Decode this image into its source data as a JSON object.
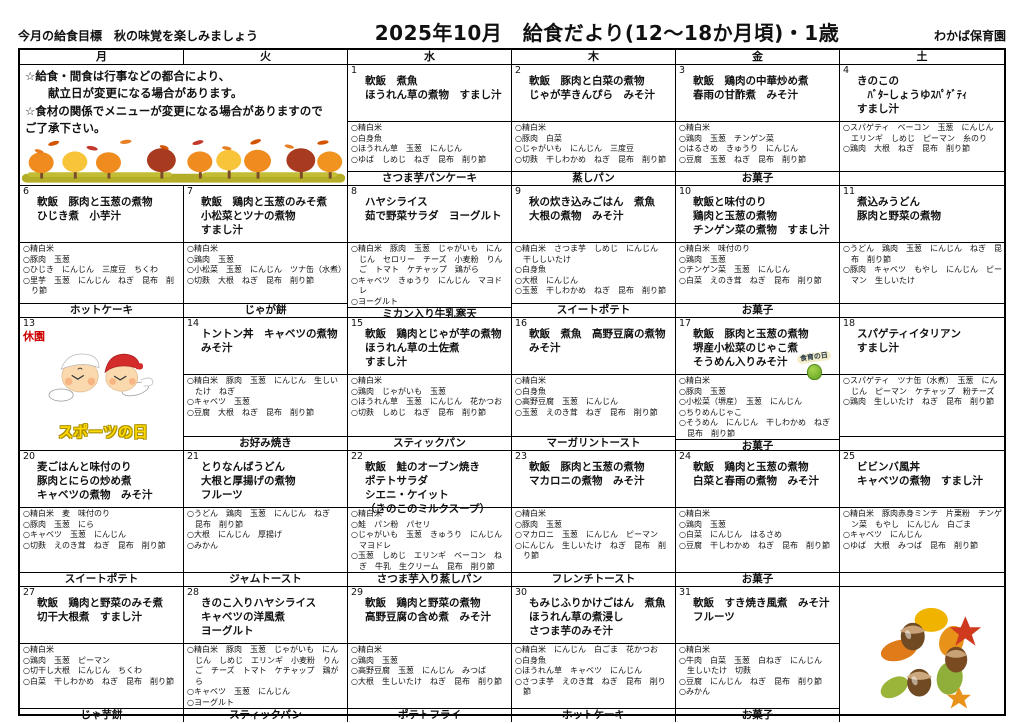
{
  "header": {
    "goal": "今月の給食目標　秋の味覚を楽しみましょう",
    "title": "2025年10月　給食だより(12～18か月頃)・1歳",
    "school": "わかば保育園"
  },
  "weekdays": [
    "月",
    "火",
    "水",
    "木",
    "金",
    "土"
  ],
  "notice_lines": [
    "☆給食・間食は行事などの都合により、",
    "　　献立日が変更になる場合があります。",
    "☆食材の関係でメニューが変更になる場合がありますので",
    "ご了承下さい。"
  ],
  "closed_label": "休園",
  "sports_day_label": "スポーツの日",
  "shokuiku_label": "食育の日",
  "colors": {
    "closed_red": "#cc0000",
    "sports_yellow": "#ffd800"
  },
  "weeks": [
    [
      {
        "type": "notice",
        "span": 2
      },
      {
        "type": "day",
        "day": "1",
        "menu": [
          "軟飯　煮魚",
          "ほうれん草の煮物　すまし汁"
        ],
        "ingredients": [
          "○精白米",
          "○白身魚",
          "○ほうれん草　玉葱　にんじん",
          "○ゆば　しめじ　ねぎ　昆布　削り節"
        ],
        "snack": "さつま芋パンケーキ"
      },
      {
        "type": "day",
        "day": "2",
        "menu": [
          "軟飯　豚肉と白菜の煮物",
          "じゃが芋きんぴら　みそ汁"
        ],
        "ingredients": [
          "○精白米",
          "○豚肉　白菜",
          "○じゃがいも　にんじん　三度豆",
          "○切麩　干しわかめ　ねぎ　昆布　削り節"
        ],
        "snack": "蒸しパン"
      },
      {
        "type": "day",
        "day": "3",
        "menu": [
          "軟飯　鶏肉の中華炒め煮",
          "春雨の甘酢煮　みそ汁"
        ],
        "ingredients": [
          "○精白米",
          "○鶏肉　玉葱　チンゲン菜",
          "○はるさめ　きゅうり　にんじん",
          "○豆腐　玉葱　ねぎ　昆布　削り節"
        ],
        "snack": "お菓子"
      },
      {
        "type": "day",
        "day": "4",
        "menu": [
          "きのこの",
          "　ﾊﾞﾀｰしょうゆｽﾊﾟｹﾞﾃｨ",
          "すまし汁"
        ],
        "ingredients": [
          "○スパゲティ　ベーコン　玉葱　にんじん　エリンギ　しめじ　ピーマン　糸のり",
          "○鶏肉　大根　ねぎ　昆布　削り節"
        ],
        "snack": ""
      }
    ],
    [
      {
        "type": "day",
        "day": "6",
        "menu": [
          "軟飯　豚肉と玉葱の煮物",
          "ひじき煮　小芋汁"
        ],
        "ingredients": [
          "○精白米",
          "○豚肉　玉葱",
          "○ひじき　にんじん　三度豆　ちくわ",
          "○里芋　玉葱　にんじん　ねぎ　昆布　削り節"
        ],
        "snack": "ホットケーキ"
      },
      {
        "type": "day",
        "day": "7",
        "menu": [
          "軟飯　鶏肉と玉葱のみそ煮",
          "小松菜とツナの煮物",
          "すまし汁"
        ],
        "ingredients": [
          "○精白米",
          "○鶏肉　玉葱",
          "○小松菜　玉葱　にんじん　ツナ缶（水煮）",
          "○切麩　大根　ねぎ　昆布　削り節"
        ],
        "snack": "じゃが餅"
      },
      {
        "type": "day",
        "day": "8",
        "menu": [
          "ハヤシライス",
          "茹で野菜サラダ　ヨーグルト"
        ],
        "ingredients": [
          "○精白米　豚肉　玉葱　じゃがいも　にんじん　セロリー　チーズ　小麦粉　りんご　トマト　ケチャップ　鶏がら",
          "○キャベツ　きゅうり　にんじん　マヨドレ",
          "○ヨーグルト"
        ],
        "snack": "ミカン入り牛乳寒天"
      },
      {
        "type": "day",
        "day": "9",
        "menu": [
          "秋の炊き込みごはん　煮魚",
          "大根の煮物　みそ汁"
        ],
        "ingredients": [
          "○精白米　さつま芋　しめじ　にんじん　干ししいたけ",
          "○白身魚",
          "○大根　にんじん",
          "○玉葱　干しわかめ　ねぎ　昆布　削り節"
        ],
        "snack": "スイートポテト"
      },
      {
        "type": "day",
        "day": "10",
        "menu": [
          "軟飯と味付のり",
          "鶏肉と玉葱の煮物",
          "チンゲン菜の煮物　すまし汁"
        ],
        "ingredients": [
          "○精白米　味付のり",
          "○鶏肉　玉葱",
          "○チンゲン菜　玉葱　にんじん",
          "○白菜　えのき茸　ねぎ　昆布　削り節"
        ],
        "snack": "お菓子"
      },
      {
        "type": "day",
        "day": "11",
        "menu": [
          "煮込みうどん",
          "豚肉と野菜の煮物"
        ],
        "ingredients": [
          "○うどん　鶏肉　玉葱　にんじん　ねぎ　昆布　削り節",
          "○豚肉　キャベツ　もやし　にんじん　ピーマン　生しいたけ"
        ],
        "snack": ""
      }
    ],
    [
      {
        "type": "closed",
        "day": "13"
      },
      {
        "type": "day",
        "day": "14",
        "menu": [
          "トントン丼　キャベツの煮物",
          "みそ汁"
        ],
        "ingredients": [
          "○精白米　豚肉　玉葱　にんじん　生しいたけ　ねぎ",
          "○キャベツ　玉葱",
          "○豆腐　大根　ねぎ　昆布　削り節"
        ],
        "snack": "お好み焼き"
      },
      {
        "type": "day",
        "day": "15",
        "menu": [
          "軟飯　鶏肉とじゃが芋の煮物",
          "ほうれん草の土佐煮",
          "すまし汁"
        ],
        "ingredients": [
          "○精白米",
          "○鶏肉　じゃがいも　玉葱",
          "○ほうれん草　玉葱　にんじん　花かつお",
          "○切麩　しめじ　ねぎ　昆布　削り節"
        ],
        "snack": "スティックパン"
      },
      {
        "type": "day",
        "day": "16",
        "menu": [
          "軟飯　煮魚　高野豆腐の煮物",
          "みそ汁"
        ],
        "ingredients": [
          "○精白米",
          "○白身魚",
          "○高野豆腐　玉葱　にんじん",
          "○玉葱　えのき茸　ねぎ　昆布　削り節"
        ],
        "snack": "マーガリントースト"
      },
      {
        "type": "day",
        "day": "17",
        "badge": true,
        "menu": [
          "軟飯　豚肉と玉葱の煮物",
          "堺産小松菜のじゃこ煮",
          "そうめん入りみそ汁"
        ],
        "ingredients": [
          "○精白米",
          "○豚肉　玉葱",
          "○小松菜（堺産）　玉葱　にんじん",
          "○ちりめんじゃこ",
          "○そうめん　にんじん　干しわかめ　ねぎ　昆布　削り節"
        ],
        "snack": "お菓子"
      },
      {
        "type": "day",
        "day": "18",
        "menu": [
          "スパゲティイタリアン",
          "すまし汁"
        ],
        "ingredients": [
          "○スパゲティ　ツナ缶（水煮）　玉葱　にんじん　ピーマン　ケチャップ　粉チーズ",
          "○鶏肉　生しいたけ　ねぎ　昆布　削り節"
        ],
        "snack": ""
      }
    ],
    [
      {
        "type": "day",
        "day": "20",
        "menu": [
          "麦ごはんと味付のり",
          "豚肉とにらの炒め煮",
          "キャベツの煮物　みそ汁"
        ],
        "ingredients": [
          "○精白米　麦　味付のり",
          "○豚肉　玉葱　にら",
          "○キャベツ　玉葱　にんじん",
          "○切麩　えのき茸　ねぎ　昆布　削り節"
        ],
        "snack": "スイートポテト"
      },
      {
        "type": "day",
        "day": "21",
        "menu": [
          "とりなんばうどん",
          "大根と厚揚げの煮物",
          "フルーツ"
        ],
        "ingredients": [
          "○うどん　鶏肉　玉葱　にんじん　ねぎ　昆布　削り節",
          "○大根　にんじん　厚揚げ",
          "○みかん"
        ],
        "snack": "ジャムトースト"
      },
      {
        "type": "day",
        "day": "22",
        "menu": [
          "軟飯　鮭のオーブン焼き",
          "ポテトサラダ",
          "シエニ・ケイット",
          "（きのこのミルクスープ）"
        ],
        "ingredients": [
          "○精白米",
          "○鮭　パン粉　パセリ",
          "○じゃがいも　玉葱　きゅうり　にんじん　マヨドレ",
          "○玉葱　しめじ　エリンギ　ベーコン　ねぎ　牛乳　生クリーム　昆布　削り節"
        ],
        "snack": "さつま芋入り蒸しパン"
      },
      {
        "type": "day",
        "day": "23",
        "menu": [
          "軟飯　豚肉と玉葱の煮物",
          "マカロニの煮物　みそ汁"
        ],
        "ingredients": [
          "○精白米",
          "○豚肉　玉葱",
          "○マカロニ　玉葱　にんじん　ピーマン",
          "○にんじん　生しいたけ　ねぎ　昆布　削り節"
        ],
        "snack": "フレンチトースト"
      },
      {
        "type": "day",
        "day": "24",
        "menu": [
          "軟飯　鶏肉と玉葱の煮物",
          "白菜と春雨の煮物　みそ汁"
        ],
        "ingredients": [
          "○精白米",
          "○鶏肉　玉葱",
          "○白菜　にんじん　はるさめ",
          "○豆腐　干しわかめ　ねぎ　昆布　削り節"
        ],
        "snack": "お菓子"
      },
      {
        "type": "day",
        "day": "25",
        "menu": [
          "ビビンバ風丼",
          "キャベツの煮物　すまし汁"
        ],
        "ingredients": [
          "○精白米　豚肉赤身ミンチ　片栗粉　チンゲン菜　もやし　にんじん　白ごま",
          "○キャベツ　にんじん",
          "○ゆば　大根　みつば　昆布　削り節"
        ],
        "snack": ""
      }
    ],
    [
      {
        "type": "day",
        "day": "27",
        "menu": [
          "軟飯　鶏肉と野菜のみそ煮",
          "切干大根煮　すまし汁"
        ],
        "ingredients": [
          "○精白米",
          "○鶏肉　玉葱　ピーマン",
          "○切干し大根　にんじん　ちくわ",
          "○白菜　干しわかめ　ねぎ　昆布　削り節"
        ],
        "snack": "じゃ芋餅"
      },
      {
        "type": "day",
        "day": "28",
        "menu": [
          "きのこ入りハヤシライス",
          "キャベツの洋風煮",
          "ヨーグルト"
        ],
        "ingredients": [
          "○精白米　豚肉　玉葱　じゃがいも　にんじん　しめじ　エリンギ　小麦粉　りんご　チーズ　トマト　ケチャップ　鶏がら",
          "○キャベツ　玉葱　にんじん",
          "○ヨーグルト"
        ],
        "snack": "スティックパン"
      },
      {
        "type": "day",
        "day": "29",
        "menu": [
          "軟飯　鶏肉と野菜の煮物",
          "高野豆腐の含め煮　みそ汁"
        ],
        "ingredients": [
          "○精白米",
          "○鶏肉　玉葱",
          "○高野豆腐　玉葱　にんじん　みつば",
          "○大根　生しいたけ　ねぎ　昆布　削り節"
        ],
        "snack": "ポテトフライ"
      },
      {
        "type": "day",
        "day": "30",
        "menu": [
          "もみじふりかけごはん　煮魚",
          "ほうれん草の煮浸し",
          "さつま芋のみそ汁"
        ],
        "ingredients": [
          "○精白米　にんじん　白ごま　花かつお",
          "○白身魚",
          "○ほうれん草　キャベツ　にんじん",
          "○さつま芋　えのき茸　ねぎ　昆布　削り節"
        ],
        "snack": "ホットケーキ"
      },
      {
        "type": "day",
        "day": "31",
        "menu": [
          "軟飯　すき焼き風煮　みそ汁",
          "フルーツ"
        ],
        "ingredients": [
          "○精白米",
          "○牛肉　白菜　玉葱　白ねぎ　にんじん　生しいたけ　切麩",
          "○豆腐　にんじん　ねぎ　昆布　削り節",
          "○みかん"
        ],
        "snack": "お菓子"
      },
      {
        "type": "art"
      }
    ]
  ]
}
